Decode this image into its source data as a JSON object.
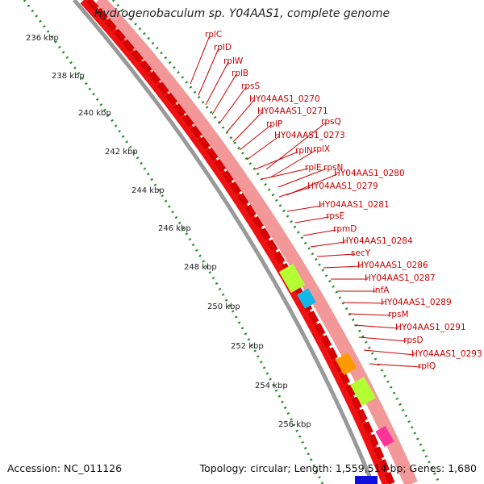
{
  "title": "Hydrogenobaculum sp. Y04AAS1, complete genome",
  "accession": "Accession: NC_011126",
  "topology": "Topology: circular; Length: 1,559,514 bp; Genes: 1,680",
  "ticks": [
    "236 kbp",
    "238 kbp",
    "240 kbp",
    "242 kbp",
    "244 kbp",
    "246 kbp",
    "248 kbp",
    "250 kbp",
    "252 kbp",
    "254 kbp",
    "256 kbp"
  ],
  "genes": [
    "rplC",
    "rplD",
    "rplW",
    "rplB",
    "rpsS",
    "HY04AAS1_0270",
    "HY04AAS1_0271",
    "rplP",
    "rpsQ",
    "HY04AAS1_0273",
    "rplN",
    "rplX",
    "rplE",
    "rpsN",
    "HY04AAS1_0280",
    "HY04AAS1_0279",
    "HY04AAS1_0281",
    "rpsE",
    "rpmD",
    "HY04AAS1_0284",
    "secY",
    "HY04AAS1_0286",
    "HY04AAS1_0287",
    "infA",
    "HY04AAS1_0289",
    "rpsM",
    "HY04AAS1_0291",
    "rpsD",
    "HY04AAS1_0293",
    "rplQ"
  ],
  "colors": {
    "gene": "#e60000",
    "label": "#cc0000",
    "band": "#f08a8a",
    "green": "#b3ff33",
    "cyan": "#11b8e8",
    "orange": "#ff9900",
    "tick": "#1e8a1e",
    "backbone": "#888888"
  }
}
